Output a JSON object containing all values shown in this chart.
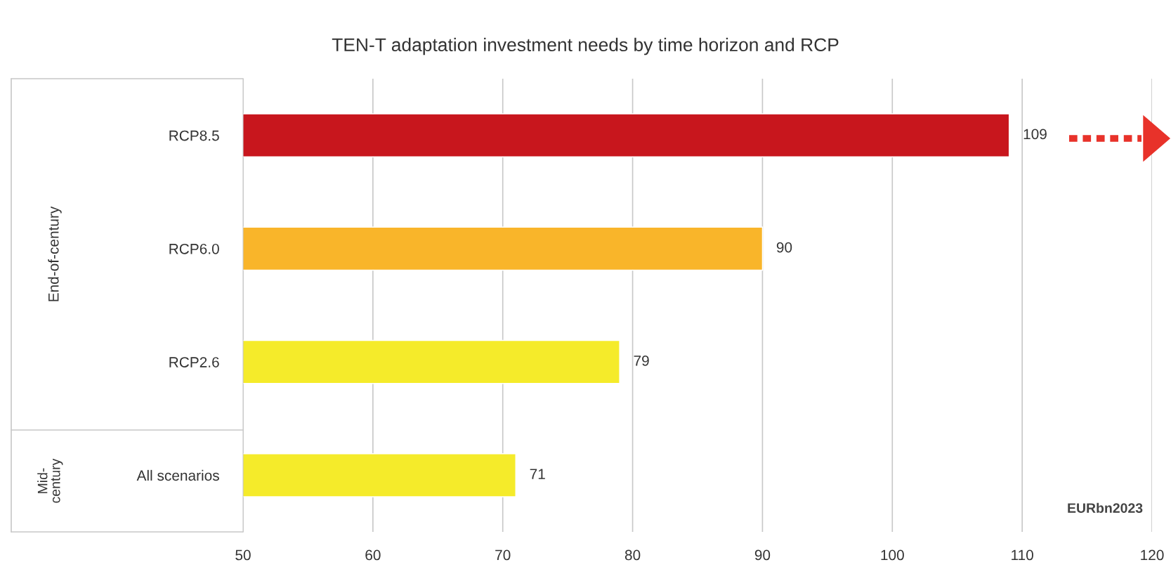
{
  "chart_data": {
    "type": "bar",
    "orientation": "horizontal",
    "title": "TEN-T adaptation investment needs by time horizon and RCP",
    "categories": [
      "RCP8.5",
      "RCP6.0",
      "RCP2.6",
      "All scenarios"
    ],
    "values": [
      109,
      90,
      79,
      71
    ],
    "colors": [
      "#c8161d",
      "#f9b52a",
      "#f5eb2a",
      "#f5eb2a"
    ],
    "xlim": [
      50,
      120
    ],
    "xticks": [
      50,
      60,
      70,
      80,
      90,
      100,
      110,
      120
    ],
    "grid": "x",
    "data_labels": true,
    "annotations": [
      "End-of-century",
      "Mid-\ncentury",
      "EURbn2023"
    ]
  }
}
